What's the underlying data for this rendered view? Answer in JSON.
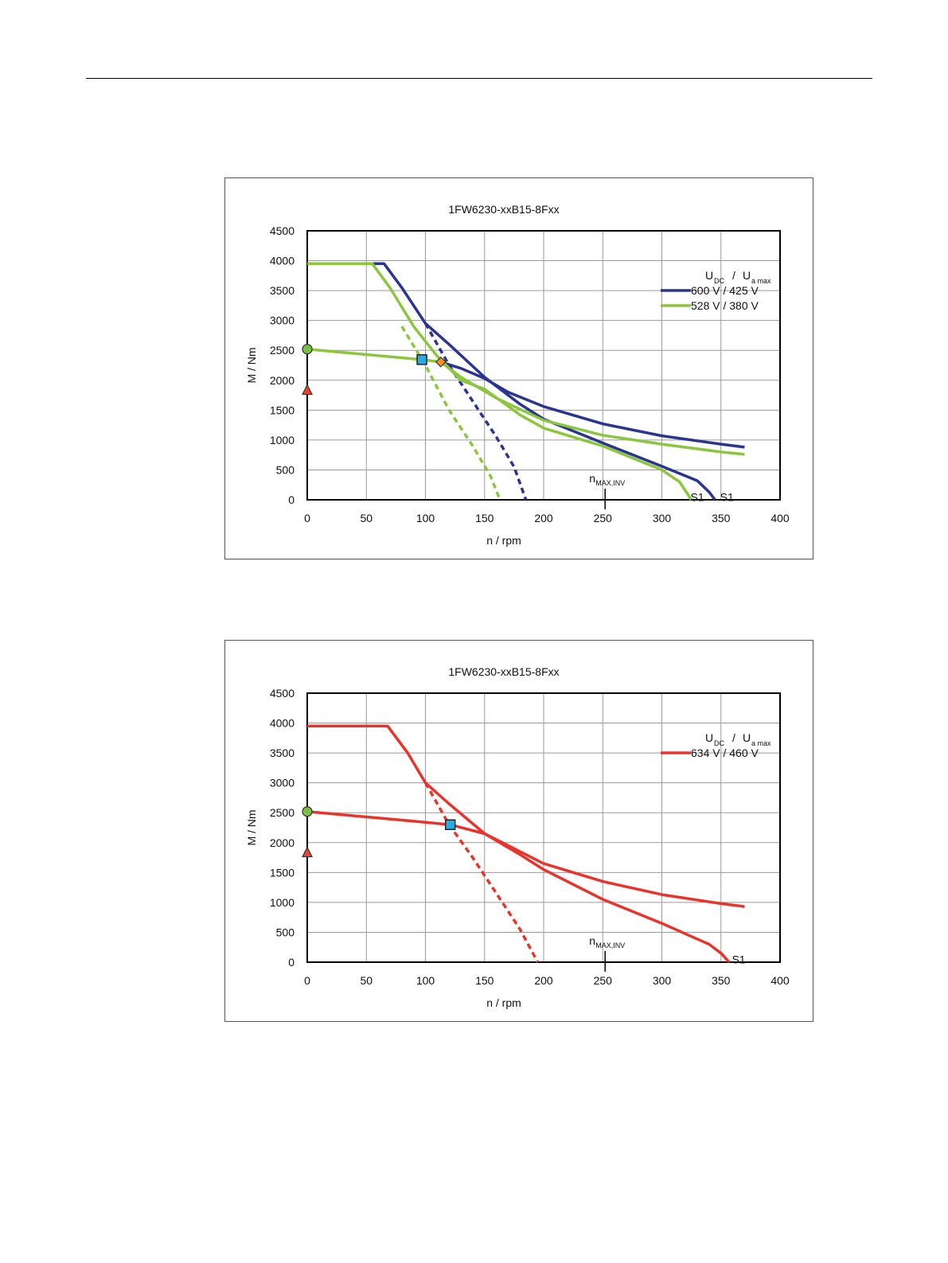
{
  "chart_data": [
    {
      "type": "line",
      "title": "1FW6230-xxB15-8Fxx",
      "xlabel": "n / rpm",
      "ylabel": "M / Nm",
      "xlim": [
        0,
        400
      ],
      "ylim": [
        0,
        4500
      ],
      "xticks": [
        0,
        50,
        100,
        150,
        200,
        250,
        300,
        350,
        400
      ],
      "yticks": [
        0,
        500,
        1000,
        1500,
        2000,
        2500,
        3000,
        3500,
        4000,
        4500
      ],
      "grid": true,
      "legend": {
        "position": "top-right",
        "header": {
          "u": "U",
          "dc": "DC",
          "sep": "/",
          "ua": "U",
          "amax": "a max"
        },
        "entries": [
          {
            "label": "600 V / 425 V",
            "color": "#2a3590"
          },
          {
            "label": "528 V / 380 V",
            "color": "#8cc63f"
          }
        ]
      },
      "annotations": [
        {
          "text": "n",
          "sub": "MAX,INV",
          "x": 252,
          "kind": "nmax"
        },
        {
          "text": "S1",
          "x": 330,
          "y": 60,
          "kind": "s1-green"
        },
        {
          "text": "S1",
          "x": 355,
          "y": 60,
          "kind": "s1-blue"
        }
      ],
      "markers": [
        {
          "shape": "circle",
          "x": 0,
          "y": 2520,
          "color": "#7ac143"
        },
        {
          "shape": "triangle",
          "x": 0,
          "y": 1830,
          "color": "#e8432e"
        },
        {
          "shape": "square",
          "x": 97,
          "y": 2345,
          "color": "#29abe2"
        },
        {
          "shape": "diamond",
          "x": 113,
          "y": 2305,
          "color": "#f7941d"
        }
      ],
      "series": [
        {
          "name": "600 V / 425 V",
          "style": "solid",
          "color": "#2a3590",
          "x": [
            0,
            65,
            80,
            100,
            120,
            150,
            180,
            200,
            250,
            300,
            330,
            340,
            345
          ],
          "y": [
            3950,
            3950,
            3550,
            2950,
            2600,
            2050,
            1600,
            1350,
            950,
            560,
            320,
            130,
            0
          ]
        },
        {
          "name": "600 V / 425 V",
          "style": "solid",
          "color": "#2a3590",
          "x": [
            113,
            130,
            150,
            170,
            200,
            250,
            300,
            350,
            370
          ],
          "y": [
            2305,
            2200,
            2030,
            1800,
            1560,
            1270,
            1070,
            930,
            880
          ]
        },
        {
          "name": "600 V / 425 V",
          "style": "dashed",
          "color": "#2a3590",
          "x": [
            100,
            120,
            140,
            160,
            175,
            185
          ],
          "y": [
            2950,
            2250,
            1650,
            1050,
            550,
            0
          ]
        },
        {
          "name": "528 V / 380 V",
          "style": "solid",
          "color": "#8cc63f",
          "x": [
            0,
            55,
            70,
            90,
            110,
            130,
            150,
            180,
            200,
            250,
            300,
            315,
            325
          ],
          "y": [
            3950,
            3950,
            3550,
            2900,
            2400,
            2000,
            1850,
            1420,
            1200,
            900,
            500,
            300,
            0
          ]
        },
        {
          "name": "528 V / 380 V",
          "style": "solid",
          "color": "#8cc63f",
          "x": [
            0,
            50,
            97,
            113,
            130,
            160,
            200,
            250,
            300,
            350,
            370
          ],
          "y": [
            2520,
            2430,
            2345,
            2305,
            2050,
            1700,
            1330,
            1080,
            930,
            800,
            760
          ]
        },
        {
          "name": "528 V / 380 V",
          "style": "dashed",
          "color": "#8cc63f",
          "x": [
            80,
            100,
            120,
            140,
            155,
            163
          ],
          "y": [
            2900,
            2250,
            1500,
            900,
            400,
            0
          ]
        }
      ]
    },
    {
      "type": "line",
      "title": "1FW6230-xxB15-8Fxx",
      "xlabel": "n / rpm",
      "ylabel": "M / Nm",
      "xlim": [
        0,
        400
      ],
      "ylim": [
        0,
        4500
      ],
      "xticks": [
        0,
        50,
        100,
        150,
        200,
        250,
        300,
        350,
        400
      ],
      "yticks": [
        0,
        500,
        1000,
        1500,
        2000,
        2500,
        3000,
        3500,
        4000,
        4500
      ],
      "grid": true,
      "legend": {
        "position": "top-right",
        "header": {
          "u": "U",
          "dc": "DC",
          "sep": "/",
          "ua": "U",
          "amax": "a max"
        },
        "entries": [
          {
            "label": "634 V / 460 V",
            "color": "#e8342b"
          }
        ]
      },
      "annotations": [
        {
          "text": "n",
          "sub": "MAX,INV",
          "x": 252,
          "kind": "nmax"
        },
        {
          "text": "S1",
          "x": 365,
          "y": 60,
          "kind": "s1-red"
        }
      ],
      "markers": [
        {
          "shape": "circle",
          "x": 0,
          "y": 2520,
          "color": "#7ac143"
        },
        {
          "shape": "triangle",
          "x": 0,
          "y": 1830,
          "color": "#e8432e"
        },
        {
          "shape": "square",
          "x": 121,
          "y": 2300,
          "color": "#29abe2"
        }
      ],
      "series": [
        {
          "name": "634 V / 460 V",
          "style": "solid",
          "color": "#e8342b",
          "x": [
            0,
            68,
            85,
            100,
            120,
            150,
            180,
            200,
            250,
            300,
            340,
            350,
            357
          ],
          "y": [
            3950,
            3950,
            3500,
            3000,
            2650,
            2150,
            1800,
            1550,
            1050,
            650,
            300,
            150,
            0
          ]
        },
        {
          "name": "634 V / 460 V",
          "style": "solid",
          "color": "#e8342b",
          "x": [
            0,
            50,
            100,
            121,
            150,
            180,
            200,
            250,
            300,
            350,
            370
          ],
          "y": [
            2520,
            2430,
            2340,
            2300,
            2150,
            1850,
            1650,
            1350,
            1130,
            980,
            930
          ]
        },
        {
          "name": "634 V / 460 V",
          "style": "dashed",
          "color": "#e8342b",
          "x": [
            100,
            120,
            140,
            160,
            180,
            195
          ],
          "y": [
            3000,
            2300,
            1750,
            1150,
            550,
            0
          ]
        }
      ]
    }
  ]
}
